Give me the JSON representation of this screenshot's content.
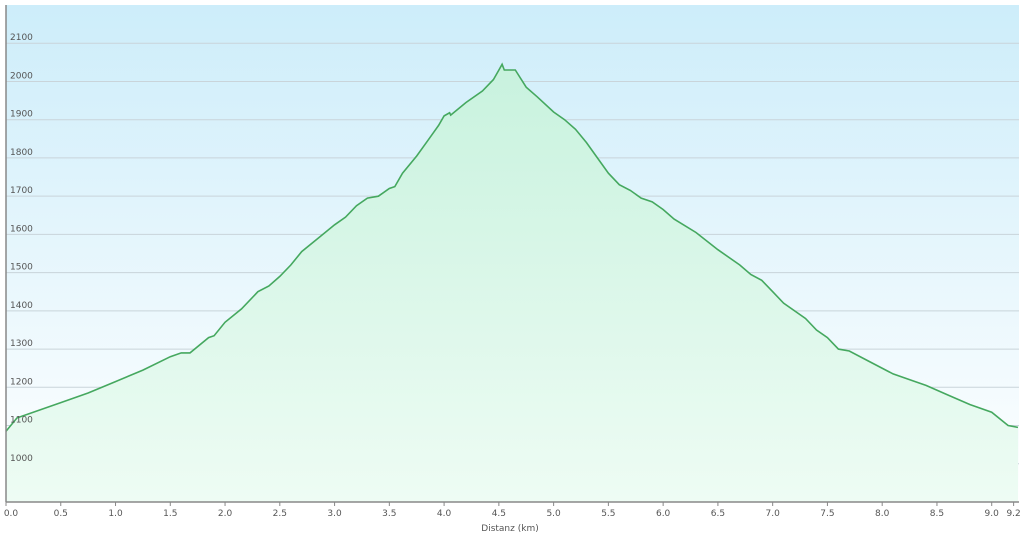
{
  "chart_data": {
    "type": "area",
    "title": "",
    "xlabel": "Distanz  (km)",
    "ylabel": "",
    "xlim": [
      0,
      9.24
    ],
    "ylim": [
      900,
      2200
    ],
    "grid": true,
    "x_ticks": [
      "0.0",
      "0.5",
      "1.0",
      "1.5",
      "2.0",
      "2.5",
      "3.0",
      "3.5",
      "4.0",
      "4.5",
      "5.0",
      "5.5",
      "6.0",
      "6.5",
      "7.0",
      "7.5",
      "8.0",
      "8.5",
      "9.0",
      "9.2"
    ],
    "x_tick_values": [
      0,
      0.5,
      1,
      1.5,
      2,
      2.5,
      3,
      3.5,
      4,
      4.5,
      5,
      5.5,
      6,
      6.5,
      7,
      7.5,
      8,
      8.5,
      9,
      9.2
    ],
    "y_ticks": [
      1000,
      1100,
      1200,
      1300,
      1400,
      1500,
      1600,
      1700,
      1800,
      1900,
      2000,
      2100
    ],
    "colors": {
      "line": "#45a85f",
      "fill_top": "#c8f2de",
      "fill_bottom": "#eefcf4",
      "bg_top": "#cdedfa",
      "bg_bottom": "#ffffff"
    },
    "series": [
      {
        "x": [
          0,
          0.1,
          0.2,
          0.5,
          0.75,
          1.0,
          1.25,
          1.5,
          1.6,
          1.68,
          1.85,
          1.9,
          2.0,
          2.15,
          2.3,
          2.4,
          2.5,
          2.6,
          2.7,
          2.85,
          3.0,
          3.1,
          3.2,
          3.3,
          3.4,
          3.5,
          3.55,
          3.62,
          3.75,
          3.85,
          3.95,
          4.0,
          4.05,
          4.06,
          4.2,
          4.35,
          4.45,
          4.5,
          4.53,
          4.55,
          4.65,
          4.75,
          4.85,
          5.0,
          5.1,
          5.2,
          5.3,
          5.4,
          5.5,
          5.6,
          5.7,
          5.8,
          5.9,
          6.0,
          6.1,
          6.3,
          6.5,
          6.7,
          6.8,
          6.9,
          7.0,
          7.1,
          7.3,
          7.4,
          7.5,
          7.6,
          7.7,
          7.9,
          8.1,
          8.4,
          8.6,
          8.8,
          9.0,
          9.15,
          9.24
        ],
        "y": [
          1085,
          1120,
          1130,
          1160,
          1185,
          1215,
          1245,
          1280,
          1290,
          1290,
          1330,
          1335,
          1370,
          1405,
          1450,
          1465,
          1490,
          1520,
          1555,
          1590,
          1625,
          1645,
          1675,
          1695,
          1700,
          1720,
          1725,
          1760,
          1805,
          1845,
          1885,
          1910,
          1918,
          1912,
          1945,
          1975,
          2005,
          2030,
          2045,
          2030,
          2030,
          1985,
          1960,
          1920,
          1900,
          1875,
          1840,
          1800,
          1760,
          1730,
          1715,
          1695,
          1685,
          1665,
          1640,
          1605,
          1560,
          1520,
          1495,
          1480,
          1450,
          1420,
          1380,
          1350,
          1330,
          1300,
          1295,
          1265,
          1235,
          1205,
          1180,
          1155,
          1135,
          1100,
          1095
        ]
      }
    ]
  }
}
